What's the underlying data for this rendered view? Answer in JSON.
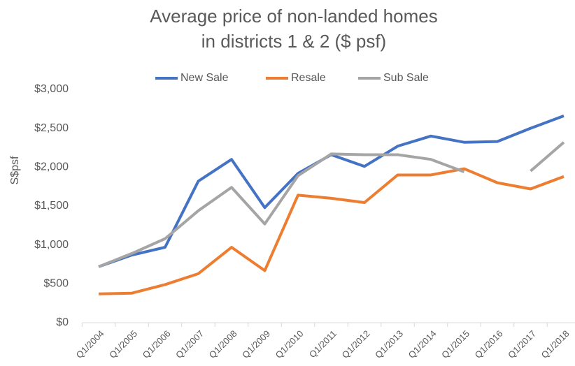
{
  "chart_data": {
    "type": "line",
    "title": [
      "Average price of non-landed homes",
      "in districts 1 & 2 ($ psf)"
    ],
    "y_label": "S$psf",
    "categories": [
      "Q1/2004",
      "Q1/2005",
      "Q1/2006",
      "Q1/2007",
      "Q1/2008",
      "Q1/2009",
      "Q1/2010",
      "Q1/2011",
      "Q1/2012",
      "Q1/2013",
      "Q1/2014",
      "Q1/2015",
      "Q1/2016",
      "Q1/2017",
      "Q1/2018"
    ],
    "series": [
      {
        "name": "New Sale",
        "color": "#4472c4",
        "values": [
          720,
          870,
          970,
          1820,
          2100,
          1480,
          1920,
          2160,
          2010,
          2270,
          2400,
          2320,
          2330,
          2500,
          2660
        ]
      },
      {
        "name": "Resale",
        "color": "#ed7d31",
        "values": [
          370,
          380,
          490,
          630,
          970,
          670,
          1640,
          1600,
          1545,
          1900,
          1900,
          1980,
          1800,
          1720,
          1880
        ]
      },
      {
        "name": "Sub Sale",
        "color": "#a5a5a5",
        "values": [
          720,
          890,
          1080,
          1440,
          1740,
          1270,
          1890,
          2170,
          2160,
          2160,
          2100,
          1940,
          null,
          1950,
          2320
        ]
      }
    ],
    "ylim": [
      0,
      3000
    ],
    "yticks": [
      {
        "value": 0,
        "label": "$0"
      },
      {
        "value": 500,
        "label": "$500"
      },
      {
        "value": 1000,
        "label": "$1,000"
      },
      {
        "value": 1500,
        "label": "$1,500"
      },
      {
        "value": 2000,
        "label": "$2,000"
      },
      {
        "value": 2500,
        "label": "$2,500"
      },
      {
        "value": 3000,
        "label": "$3,000"
      }
    ],
    "legend": "top",
    "grid": false
  }
}
